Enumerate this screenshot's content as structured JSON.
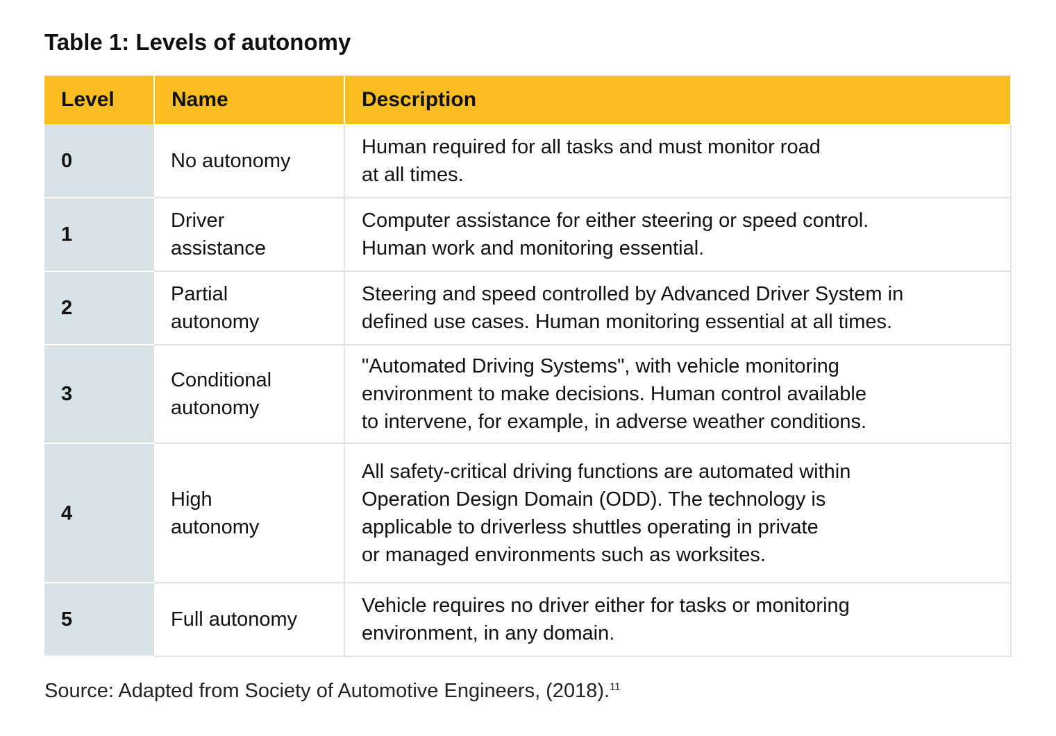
{
  "title": "Table 1: Levels of autonomy",
  "headers": [
    "Level",
    "Name",
    "Description"
  ],
  "rows": [
    {
      "level": "0",
      "name": [
        "No autonomy"
      ],
      "desc": [
        "Human required for all tasks and must monitor road",
        "at all times."
      ]
    },
    {
      "level": "1",
      "name": [
        "Driver",
        "assistance"
      ],
      "desc": [
        "Computer assistance for either steering or speed control.",
        "Human work and monitoring essential."
      ]
    },
    {
      "level": "2",
      "name": [
        "Partial",
        "autonomy"
      ],
      "desc": [
        "Steering and speed controlled by Advanced Driver System in",
        "defined use cases. Human monitoring essential at all times."
      ]
    },
    {
      "level": "3",
      "name": [
        "Conditional",
        "autonomy"
      ],
      "desc": [
        "\"Automated Driving Systems\", with vehicle monitoring",
        "environment to make decisions. Human control available",
        "to intervene, for example, in adverse weather conditions."
      ]
    },
    {
      "level": "4",
      "name": [
        "High",
        "autonomy"
      ],
      "desc": [
        "All safety-critical driving functions are automated within",
        "Operation Design Domain (ODD). The technology is",
        "applicable to driverless shuttles operating in private",
        "or managed environments such as worksites."
      ]
    },
    {
      "level": "5",
      "name": [
        "Full autonomy"
      ],
      "desc": [
        "Vehicle requires no driver either for tasks or monitoring",
        "environment, in any domain."
      ]
    }
  ],
  "source": "Source: Adapted from Society of Automotive Engineers, (2018).",
  "source_footnote": "11"
}
